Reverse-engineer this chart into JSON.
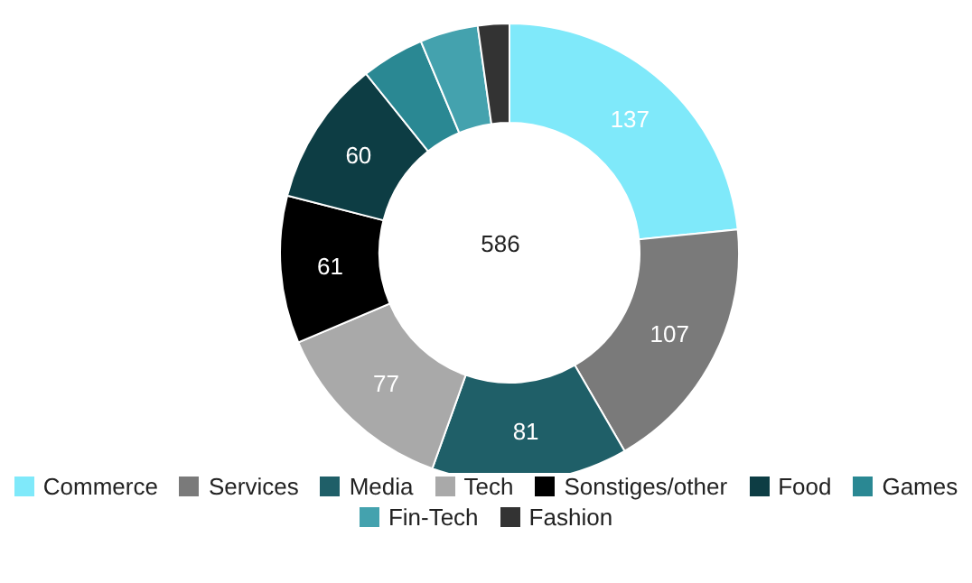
{
  "chart_data": {
    "type": "donut",
    "categories": [
      "Commerce",
      "Services",
      "Media",
      "Tech",
      "Sonstiges/other",
      "Food",
      "Games",
      "Fin-Tech",
      "Fashion"
    ],
    "values": [
      137,
      107,
      81,
      77,
      61,
      60,
      26,
      24,
      13
    ],
    "colors": [
      "#7fe9fa",
      "#7a7a7a",
      "#1f5f68",
      "#a9a9a9",
      "#000000",
      "#0d3d44",
      "#2a8893",
      "#44a2ae",
      "#333333"
    ],
    "value_labels": [
      "137",
      "107",
      "81",
      "77",
      "61",
      "60",
      null,
      null,
      null
    ],
    "annotations": [
      "586"
    ],
    "legend": "bottom"
  }
}
